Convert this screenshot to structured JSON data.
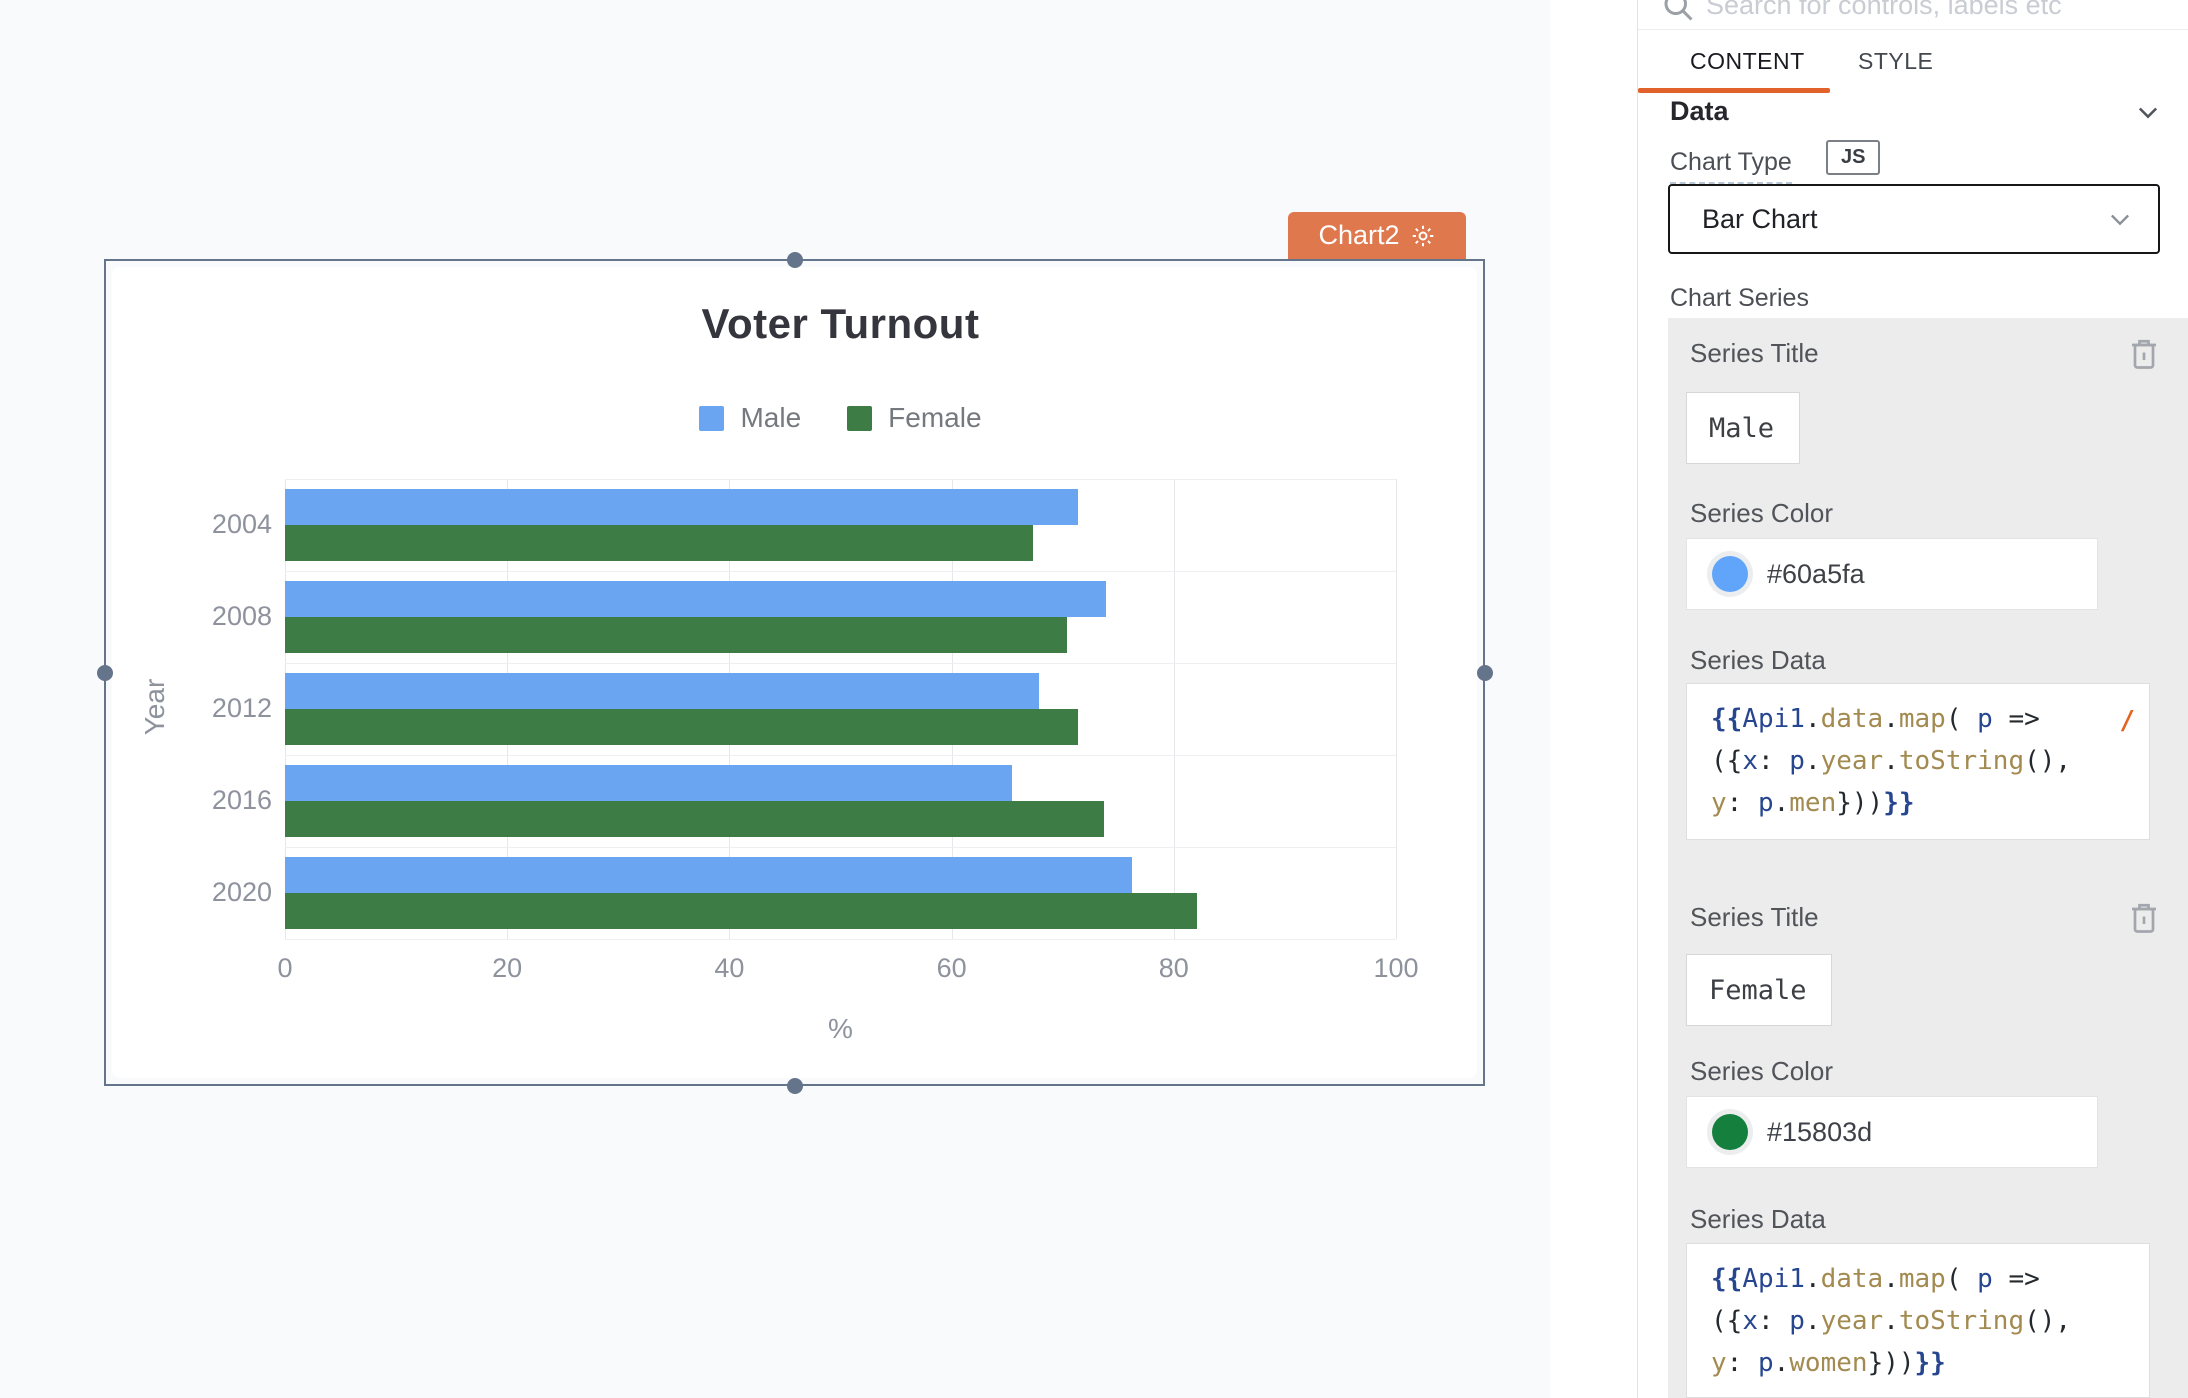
{
  "canvas": {
    "selection_tag": {
      "label": "Chart2",
      "color": "#e0784e",
      "gear_icon": "gear-icon"
    }
  },
  "chart_data": {
    "type": "bar",
    "orientation": "horizontal",
    "title": "Voter Turnout",
    "categories": [
      "2004",
      "2008",
      "2012",
      "2016",
      "2020"
    ],
    "series": [
      {
        "name": "Male",
        "color": "#60a5fa",
        "render_color": "#6aa5f2",
        "values": [
          71.4,
          73.9,
          67.9,
          65.4,
          76.2
        ]
      },
      {
        "name": "Female",
        "color": "#15803d",
        "render_color": "#3d7d45",
        "values": [
          67.3,
          70.4,
          71.4,
          73.7,
          82.1
        ]
      }
    ],
    "xlabel": "%",
    "ylabel": "Year",
    "xlim": [
      0,
      100
    ],
    "xticks": [
      0,
      20,
      40,
      60,
      80,
      100
    ],
    "grid": true,
    "legend_position": "top"
  },
  "inspector": {
    "search_placeholder": "Search for controls, labels etc",
    "search_icon": "search-icon",
    "accent_color": "#e2622b",
    "tabs": [
      {
        "label": "CONTENT",
        "active": true
      },
      {
        "label": "STYLE",
        "active": false
      }
    ],
    "data_section": {
      "title": "Data",
      "chevron_icon": "chevron-down-icon"
    },
    "chart_type": {
      "label": "Chart Type",
      "badge": "JS",
      "value": "Bar Chart"
    },
    "chart_series_label": "Chart Series",
    "series": [
      {
        "title_label": "Series Title",
        "title_value": "Male",
        "color_label": "Series Color",
        "color_value": "#60a5fa",
        "data_label": "Series Data",
        "wrap_marker": "/",
        "code_lines": [
          [
            [
              "b",
              "{{"
            ],
            [
              "n",
              "Api1"
            ],
            [
              "p",
              "."
            ],
            [
              "t",
              "data"
            ],
            [
              "p",
              "."
            ],
            [
              "t",
              "map"
            ],
            [
              "p",
              "( "
            ],
            [
              "n",
              "p"
            ],
            [
              "p",
              " =>"
            ]
          ],
          [
            [
              "p",
              "({"
            ],
            [
              "n",
              "x"
            ],
            [
              "p",
              ": "
            ],
            [
              "n",
              "p"
            ],
            [
              "p",
              "."
            ],
            [
              "t",
              "year"
            ],
            [
              "p",
              "."
            ],
            [
              "t",
              "toString"
            ],
            [
              "p",
              "(),"
            ]
          ],
          [
            [
              "t",
              "y"
            ],
            [
              "p",
              ": "
            ],
            [
              "n",
              "p"
            ],
            [
              "p",
              "."
            ],
            [
              "t",
              "men"
            ],
            [
              "p",
              "}))"
            ],
            [
              "b",
              "}}"
            ]
          ]
        ]
      },
      {
        "title_label": "Series Title",
        "title_value": "Female",
        "color_label": "Series Color",
        "color_value": "#15803d",
        "data_label": "Series Data",
        "wrap_marker": "",
        "code_lines": [
          [
            [
              "b",
              "{{"
            ],
            [
              "n",
              "Api1"
            ],
            [
              "p",
              "."
            ],
            [
              "t",
              "data"
            ],
            [
              "p",
              "."
            ],
            [
              "t",
              "map"
            ],
            [
              "p",
              "( "
            ],
            [
              "n",
              "p"
            ],
            [
              "p",
              " =>"
            ]
          ],
          [
            [
              "p",
              "({"
            ],
            [
              "n",
              "x"
            ],
            [
              "p",
              ": "
            ],
            [
              "n",
              "p"
            ],
            [
              "p",
              "."
            ],
            [
              "t",
              "year"
            ],
            [
              "p",
              "."
            ],
            [
              "t",
              "toString"
            ],
            [
              "p",
              "(),"
            ]
          ],
          [
            [
              "t",
              "y"
            ],
            [
              "p",
              ": "
            ],
            [
              "n",
              "p"
            ],
            [
              "p",
              "."
            ],
            [
              "t",
              "women"
            ],
            [
              "p",
              "}))"
            ],
            [
              "b",
              "}}"
            ]
          ]
        ]
      }
    ]
  }
}
